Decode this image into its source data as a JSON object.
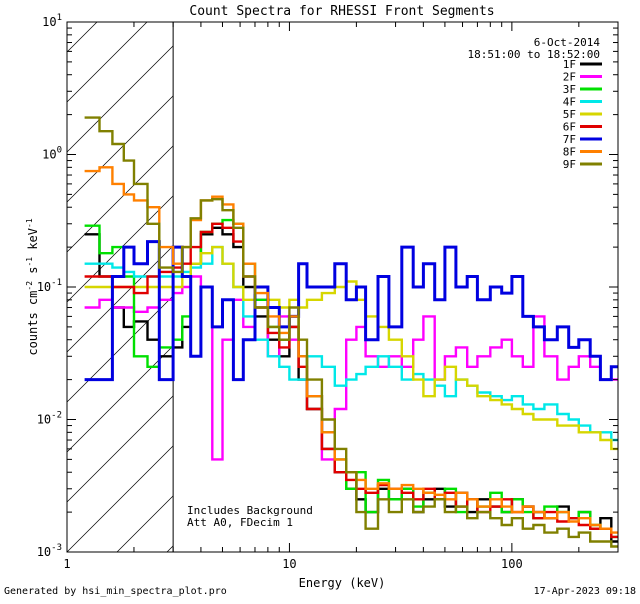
{
  "chart_data": {
    "type": "line",
    "title": "Count Spectra for RHESSI Front Segments",
    "xlabel": "Energy (keV)",
    "ylabel_parts": [
      "counts cm",
      "-2",
      " s",
      "-1",
      " keV",
      "-1"
    ],
    "xscale": "log",
    "yscale": "log",
    "xlim": [
      1,
      300
    ],
    "ylim": [
      0.001,
      10
    ],
    "x_ticks": [
      {
        "value": 1,
        "label": "1"
      },
      {
        "value": 10,
        "label": "10"
      },
      {
        "value": 100,
        "label": "100"
      }
    ],
    "y_ticks": [
      {
        "value": 0.001,
        "base": "10",
        "exp": "-3"
      },
      {
        "value": 0.01,
        "base": "10",
        "exp": "-2"
      },
      {
        "value": 0.1,
        "base": "10",
        "exp": "-1"
      },
      {
        "value": 1,
        "base": "10",
        "exp": "0"
      },
      {
        "value": 10,
        "base": "10",
        "exp": "1"
      }
    ],
    "date": "6-Oct-2014",
    "time_range": "18:51:00 to 18:52:00",
    "hatched_region_keV": [
      1,
      3
    ],
    "annotations": [
      "Includes Background",
      "Att A0, FDecim 1"
    ],
    "footer_left": "Generated by hsi_min_spectra_plot.pro",
    "footer_right": "17-Apr-2023 09:18",
    "energy_bins_keV": [
      1.2,
      1.4,
      1.6,
      1.8,
      2.0,
      2.3,
      2.6,
      3.0,
      3.3,
      3.6,
      4.0,
      4.5,
      5.0,
      5.6,
      6.2,
      7.0,
      8.0,
      9.0,
      10,
      11,
      12,
      14,
      16,
      18,
      20,
      22,
      25,
      28,
      32,
      36,
      40,
      45,
      50,
      56,
      63,
      70,
      80,
      90,
      100,
      112,
      125,
      140,
      160,
      180,
      200,
      225,
      250,
      280,
      300
    ],
    "series": [
      {
        "name": "1F",
        "color": "#000000",
        "values": [
          0.25,
          0.12,
          0.07,
          0.05,
          0.055,
          0.04,
          0.03,
          0.035,
          0.05,
          0.15,
          0.25,
          0.28,
          0.25,
          0.2,
          0.1,
          0.06,
          0.04,
          0.03,
          0.05,
          0.02,
          0.012,
          0.006,
          0.004,
          0.003,
          0.0025,
          0.002,
          0.003,
          0.0025,
          0.003,
          0.002,
          0.0025,
          0.003,
          0.0022,
          0.0028,
          0.002,
          0.0025,
          0.0022,
          0.002,
          0.0025,
          0.0022,
          0.002,
          0.0018,
          0.0022,
          0.0018,
          0.002,
          0.0015,
          0.0018,
          0.0012
        ]
      },
      {
        "name": "2F",
        "color": "#ff00ff",
        "values": [
          0.07,
          0.08,
          0.07,
          0.07,
          0.065,
          0.07,
          0.08,
          0.09,
          0.1,
          0.12,
          0.1,
          0.005,
          0.04,
          0.08,
          0.05,
          0.08,
          0.03,
          0.06,
          0.04,
          0.03,
          0.015,
          0.005,
          0.012,
          0.04,
          0.05,
          0.03,
          0.025,
          0.03,
          0.025,
          0.04,
          0.06,
          0.02,
          0.03,
          0.035,
          0.025,
          0.03,
          0.035,
          0.04,
          0.03,
          0.025,
          0.06,
          0.03,
          0.02,
          0.025,
          0.03,
          0.025,
          0.02,
          0.02
        ]
      },
      {
        "name": "3F",
        "color": "#00e000",
        "values": [
          0.29,
          0.18,
          0.2,
          0.12,
          0.03,
          0.025,
          0.035,
          0.04,
          0.06,
          0.15,
          0.26,
          0.3,
          0.32,
          0.3,
          0.15,
          0.08,
          0.05,
          0.04,
          0.06,
          0.03,
          0.015,
          0.008,
          0.005,
          0.003,
          0.004,
          0.002,
          0.0035,
          0.0025,
          0.003,
          0.0022,
          0.0028,
          0.0025,
          0.003,
          0.002,
          0.0025,
          0.0022,
          0.0028,
          0.002,
          0.0025,
          0.002,
          0.0018,
          0.0022,
          0.002,
          0.0018,
          0.002,
          0.0016,
          0.0015,
          0.0013
        ]
      },
      {
        "name": "4F",
        "color": "#00e8e8",
        "values": [
          0.15,
          0.15,
          0.14,
          0.13,
          0.12,
          0.12,
          0.12,
          0.12,
          0.13,
          0.14,
          0.15,
          0.2,
          0.15,
          0.1,
          0.06,
          0.04,
          0.03,
          0.025,
          0.02,
          0.02,
          0.03,
          0.025,
          0.018,
          0.02,
          0.022,
          0.025,
          0.03,
          0.025,
          0.02,
          0.022,
          0.02,
          0.018,
          0.015,
          0.02,
          0.018,
          0.016,
          0.015,
          0.014,
          0.015,
          0.013,
          0.012,
          0.013,
          0.011,
          0.01,
          0.009,
          0.008,
          0.008,
          0.007
        ]
      },
      {
        "name": "5F",
        "color": "#d6d600",
        "values": [
          0.1,
          0.1,
          0.1,
          0.1,
          0.1,
          0.1,
          0.1,
          0.1,
          0.12,
          0.15,
          0.18,
          0.2,
          0.15,
          0.1,
          0.08,
          0.07,
          0.08,
          0.07,
          0.08,
          0.07,
          0.08,
          0.09,
          0.1,
          0.11,
          0.08,
          0.06,
          0.05,
          0.04,
          0.03,
          0.02,
          0.015,
          0.02,
          0.025,
          0.02,
          0.018,
          0.015,
          0.014,
          0.013,
          0.012,
          0.011,
          0.01,
          0.01,
          0.009,
          0.009,
          0.008,
          0.008,
          0.007,
          0.006
        ]
      },
      {
        "name": "6F",
        "color": "#e00000",
        "values": [
          0.12,
          0.12,
          0.1,
          0.1,
          0.09,
          0.12,
          0.13,
          0.14,
          0.15,
          0.2,
          0.26,
          0.3,
          0.28,
          0.22,
          0.12,
          0.07,
          0.045,
          0.035,
          0.05,
          0.025,
          0.012,
          0.006,
          0.004,
          0.0035,
          0.003,
          0.0028,
          0.0032,
          0.003,
          0.0028,
          0.0025,
          0.003,
          0.0025,
          0.0028,
          0.0022,
          0.0025,
          0.002,
          0.0022,
          0.0025,
          0.002,
          0.0022,
          0.0018,
          0.002,
          0.0017,
          0.0018,
          0.0016,
          0.0015,
          0.0015,
          0.0013
        ]
      },
      {
        "name": "7F",
        "color": "#0000e0",
        "values": [
          0.02,
          0.02,
          0.12,
          0.2,
          0.15,
          0.22,
          0.02,
          0.2,
          0.12,
          0.03,
          0.1,
          0.05,
          0.08,
          0.02,
          0.04,
          0.1,
          0.07,
          0.05,
          0.06,
          0.15,
          0.1,
          0.1,
          0.15,
          0.08,
          0.1,
          0.04,
          0.12,
          0.05,
          0.2,
          0.1,
          0.15,
          0.08,
          0.2,
          0.1,
          0.12,
          0.08,
          0.1,
          0.09,
          0.12,
          0.06,
          0.05,
          0.04,
          0.05,
          0.035,
          0.04,
          0.03,
          0.02,
          0.025
        ]
      },
      {
        "name": "8F",
        "color": "#ff8000",
        "values": [
          0.75,
          0.8,
          0.6,
          0.5,
          0.45,
          0.4,
          0.2,
          0.15,
          0.2,
          0.32,
          0.45,
          0.48,
          0.42,
          0.3,
          0.15,
          0.09,
          0.06,
          0.045,
          0.06,
          0.03,
          0.015,
          0.008,
          0.005,
          0.004,
          0.0035,
          0.003,
          0.0033,
          0.003,
          0.0032,
          0.003,
          0.0028,
          0.0027,
          0.0025,
          0.0028,
          0.0025,
          0.0022,
          0.0025,
          0.0022,
          0.002,
          0.0022,
          0.002,
          0.0018,
          0.002,
          0.0017,
          0.0018,
          0.0016,
          0.0015,
          0.0014
        ]
      },
      {
        "name": "9F",
        "color": "#808000",
        "values": [
          1.9,
          1.5,
          1.2,
          0.9,
          0.6,
          0.3,
          0.14,
          0.13,
          0.2,
          0.33,
          0.45,
          0.46,
          0.38,
          0.28,
          0.12,
          0.07,
          0.05,
          0.04,
          0.07,
          0.04,
          0.02,
          0.01,
          0.006,
          0.004,
          0.002,
          0.0015,
          0.0025,
          0.002,
          0.0025,
          0.002,
          0.0022,
          0.0025,
          0.002,
          0.0022,
          0.0018,
          0.002,
          0.0018,
          0.0016,
          0.0018,
          0.0015,
          0.0016,
          0.0014,
          0.0015,
          0.0013,
          0.0014,
          0.0012,
          0.0012,
          0.0011
        ]
      }
    ]
  }
}
